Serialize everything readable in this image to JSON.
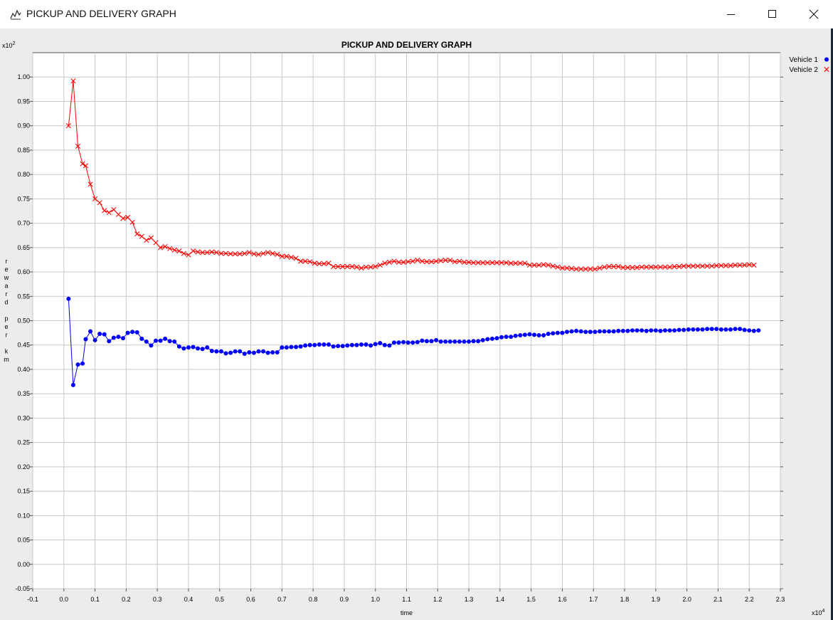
{
  "window": {
    "title": "PICKUP AND DELIVERY GRAPH",
    "icons": [
      "chart-app-icon",
      "minimize-icon",
      "maximize-icon",
      "close-icon"
    ]
  },
  "chart_data": {
    "type": "line",
    "title": "PICKUP AND DELIVERY GRAPH",
    "xlabel": "time",
    "ylabel": "reward per km",
    "x_multiplier": "x10",
    "x_multiplier_exp": "4",
    "y_multiplier": "x10",
    "y_multiplier_exp": "2",
    "xlim": [
      -0.1,
      2.3
    ],
    "ylim": [
      -0.05,
      1.05
    ],
    "x_ticks": [
      "-0.1",
      "0.0",
      "0.1",
      "0.2",
      "0.3",
      "0.4",
      "0.5",
      "0.6",
      "0.7",
      "0.8",
      "0.9",
      "1.0",
      "1.1",
      "1.2",
      "1.3",
      "1.4",
      "1.5",
      "1.6",
      "1.7",
      "1.8",
      "1.9",
      "2.0",
      "2.1",
      "2.2",
      "2.3"
    ],
    "y_ticks": [
      "-0.05",
      "0.00",
      "0.05",
      "0.10",
      "0.15",
      "0.20",
      "0.25",
      "0.30",
      "0.35",
      "0.40",
      "0.45",
      "0.50",
      "0.55",
      "0.60",
      "0.65",
      "0.70",
      "0.75",
      "0.80",
      "0.85",
      "0.90",
      "0.95",
      "1.00"
    ],
    "grid": true,
    "legend": "top-right",
    "series": [
      {
        "name": "Vehicle 1",
        "color": "#0000ff",
        "marker": "dot",
        "points": [
          [
            0.015,
            0.545
          ],
          [
            0.03,
            0.368
          ],
          [
            0.045,
            0.41
          ],
          [
            0.06,
            0.412
          ],
          [
            0.07,
            0.462
          ],
          [
            0.085,
            0.478
          ],
          [
            0.1,
            0.46
          ],
          [
            0.115,
            0.473
          ],
          [
            0.13,
            0.472
          ],
          [
            0.145,
            0.458
          ],
          [
            0.16,
            0.465
          ],
          [
            0.175,
            0.467
          ],
          [
            0.19,
            0.464
          ],
          [
            0.205,
            0.475
          ],
          [
            0.22,
            0.477
          ],
          [
            0.235,
            0.476
          ],
          [
            0.25,
            0.463
          ],
          [
            0.265,
            0.457
          ],
          [
            0.28,
            0.449
          ],
          [
            0.295,
            0.459
          ],
          [
            0.31,
            0.459
          ],
          [
            0.325,
            0.463
          ],
          [
            0.34,
            0.458
          ],
          [
            0.355,
            0.457
          ],
          [
            0.37,
            0.447
          ],
          [
            0.385,
            0.443
          ],
          [
            0.4,
            0.445
          ],
          [
            0.415,
            0.446
          ],
          [
            0.43,
            0.443
          ],
          [
            0.445,
            0.442
          ],
          [
            0.46,
            0.445
          ],
          [
            0.475,
            0.438
          ],
          [
            0.49,
            0.437
          ],
          [
            0.505,
            0.437
          ],
          [
            0.52,
            0.433
          ],
          [
            0.535,
            0.434
          ],
          [
            0.55,
            0.437
          ],
          [
            0.565,
            0.437
          ],
          [
            0.58,
            0.432
          ],
          [
            0.595,
            0.435
          ],
          [
            0.61,
            0.434
          ],
          [
            0.625,
            0.437
          ],
          [
            0.64,
            0.437
          ],
          [
            0.655,
            0.434
          ],
          [
            0.67,
            0.435
          ],
          [
            0.685,
            0.435
          ],
          [
            0.7,
            0.445
          ],
          [
            0.715,
            0.445
          ],
          [
            0.73,
            0.446
          ],
          [
            0.745,
            0.446
          ],
          [
            0.76,
            0.447
          ],
          [
            0.775,
            0.449
          ],
          [
            0.79,
            0.45
          ],
          [
            0.805,
            0.45
          ],
          [
            0.82,
            0.451
          ],
          [
            0.835,
            0.451
          ],
          [
            0.85,
            0.451
          ],
          [
            0.865,
            0.447
          ],
          [
            0.88,
            0.448
          ],
          [
            0.895,
            0.448
          ],
          [
            0.91,
            0.449
          ],
          [
            0.925,
            0.45
          ],
          [
            0.94,
            0.45
          ],
          [
            0.955,
            0.451
          ],
          [
            0.97,
            0.451
          ],
          [
            0.985,
            0.449
          ],
          [
            1.0,
            0.452
          ],
          [
            1.015,
            0.454
          ],
          [
            1.03,
            0.45
          ],
          [
            1.045,
            0.449
          ],
          [
            1.06,
            0.455
          ],
          [
            1.075,
            0.455
          ],
          [
            1.09,
            0.456
          ],
          [
            1.105,
            0.455
          ],
          [
            1.12,
            0.455
          ],
          [
            1.135,
            0.456
          ],
          [
            1.15,
            0.459
          ],
          [
            1.165,
            0.458
          ],
          [
            1.18,
            0.458
          ],
          [
            1.195,
            0.46
          ],
          [
            1.21,
            0.457
          ],
          [
            1.225,
            0.457
          ],
          [
            1.24,
            0.457
          ],
          [
            1.255,
            0.457
          ],
          [
            1.27,
            0.457
          ],
          [
            1.285,
            0.457
          ],
          [
            1.3,
            0.457
          ],
          [
            1.315,
            0.458
          ],
          [
            1.33,
            0.458
          ],
          [
            1.345,
            0.46
          ],
          [
            1.36,
            0.462
          ],
          [
            1.375,
            0.463
          ],
          [
            1.39,
            0.464
          ],
          [
            1.405,
            0.466
          ],
          [
            1.42,
            0.467
          ],
          [
            1.435,
            0.467
          ],
          [
            1.45,
            0.469
          ],
          [
            1.465,
            0.47
          ],
          [
            1.48,
            0.471
          ],
          [
            1.495,
            0.472
          ],
          [
            1.51,
            0.471
          ],
          [
            1.525,
            0.47
          ],
          [
            1.54,
            0.47
          ],
          [
            1.555,
            0.473
          ],
          [
            1.57,
            0.474
          ],
          [
            1.585,
            0.475
          ],
          [
            1.6,
            0.475
          ],
          [
            1.615,
            0.477
          ],
          [
            1.63,
            0.478
          ],
          [
            1.645,
            0.479
          ],
          [
            1.66,
            0.478
          ],
          [
            1.675,
            0.477
          ],
          [
            1.69,
            0.477
          ],
          [
            1.705,
            0.477
          ],
          [
            1.72,
            0.478
          ],
          [
            1.735,
            0.478
          ],
          [
            1.75,
            0.478
          ],
          [
            1.765,
            0.478
          ],
          [
            1.78,
            0.479
          ],
          [
            1.795,
            0.479
          ],
          [
            1.81,
            0.479
          ],
          [
            1.825,
            0.48
          ],
          [
            1.84,
            0.48
          ],
          [
            1.855,
            0.48
          ],
          [
            1.87,
            0.479
          ],
          [
            1.885,
            0.48
          ],
          [
            1.9,
            0.48
          ],
          [
            1.915,
            0.479
          ],
          [
            1.93,
            0.48
          ],
          [
            1.945,
            0.48
          ],
          [
            1.96,
            0.48
          ],
          [
            1.975,
            0.481
          ],
          [
            1.99,
            0.481
          ],
          [
            2.005,
            0.482
          ],
          [
            2.02,
            0.482
          ],
          [
            2.035,
            0.482
          ],
          [
            2.05,
            0.482
          ],
          [
            2.065,
            0.483
          ],
          [
            2.08,
            0.483
          ],
          [
            2.095,
            0.483
          ],
          [
            2.11,
            0.482
          ],
          [
            2.125,
            0.482
          ],
          [
            2.14,
            0.482
          ],
          [
            2.155,
            0.483
          ],
          [
            2.17,
            0.483
          ],
          [
            2.185,
            0.481
          ],
          [
            2.2,
            0.48
          ],
          [
            2.215,
            0.479
          ],
          [
            2.23,
            0.48
          ]
        ]
      },
      {
        "name": "Vehicle 2",
        "color": "#ff0000",
        "marker": "x",
        "points": [
          [
            0.015,
            0.9
          ],
          [
            0.03,
            0.992
          ],
          [
            0.045,
            0.858
          ],
          [
            0.06,
            0.822
          ],
          [
            0.07,
            0.818
          ],
          [
            0.085,
            0.78
          ],
          [
            0.1,
            0.75
          ],
          [
            0.115,
            0.742
          ],
          [
            0.13,
            0.726
          ],
          [
            0.145,
            0.722
          ],
          [
            0.16,
            0.728
          ],
          [
            0.175,
            0.718
          ],
          [
            0.19,
            0.71
          ],
          [
            0.205,
            0.712
          ],
          [
            0.22,
            0.702
          ],
          [
            0.235,
            0.678
          ],
          [
            0.25,
            0.673
          ],
          [
            0.265,
            0.665
          ],
          [
            0.28,
            0.67
          ],
          [
            0.295,
            0.66
          ],
          [
            0.31,
            0.65
          ],
          [
            0.325,
            0.652
          ],
          [
            0.34,
            0.648
          ],
          [
            0.355,
            0.645
          ],
          [
            0.37,
            0.643
          ],
          [
            0.385,
            0.638
          ],
          [
            0.4,
            0.635
          ],
          [
            0.415,
            0.643
          ],
          [
            0.43,
            0.641
          ],
          [
            0.445,
            0.64
          ],
          [
            0.46,
            0.64
          ],
          [
            0.475,
            0.641
          ],
          [
            0.49,
            0.64
          ],
          [
            0.505,
            0.638
          ],
          [
            0.52,
            0.638
          ],
          [
            0.535,
            0.637
          ],
          [
            0.55,
            0.637
          ],
          [
            0.565,
            0.637
          ],
          [
            0.58,
            0.638
          ],
          [
            0.595,
            0.64
          ],
          [
            0.61,
            0.637
          ],
          [
            0.625,
            0.636
          ],
          [
            0.64,
            0.638
          ],
          [
            0.655,
            0.64
          ],
          [
            0.67,
            0.638
          ],
          [
            0.685,
            0.636
          ],
          [
            0.7,
            0.632
          ],
          [
            0.715,
            0.632
          ],
          [
            0.73,
            0.63
          ],
          [
            0.745,
            0.628
          ],
          [
            0.76,
            0.622
          ],
          [
            0.775,
            0.622
          ],
          [
            0.79,
            0.621
          ],
          [
            0.805,
            0.618
          ],
          [
            0.82,
            0.617
          ],
          [
            0.835,
            0.617
          ],
          [
            0.85,
            0.618
          ],
          [
            0.865,
            0.611
          ],
          [
            0.88,
            0.611
          ],
          [
            0.895,
            0.611
          ],
          [
            0.91,
            0.611
          ],
          [
            0.925,
            0.611
          ],
          [
            0.94,
            0.61
          ],
          [
            0.955,
            0.608
          ],
          [
            0.97,
            0.61
          ],
          [
            0.985,
            0.61
          ],
          [
            1.0,
            0.611
          ],
          [
            1.015,
            0.614
          ],
          [
            1.03,
            0.618
          ],
          [
            1.045,
            0.62
          ],
          [
            1.06,
            0.622
          ],
          [
            1.075,
            0.62
          ],
          [
            1.09,
            0.62
          ],
          [
            1.105,
            0.621
          ],
          [
            1.12,
            0.622
          ],
          [
            1.135,
            0.624
          ],
          [
            1.15,
            0.622
          ],
          [
            1.165,
            0.621
          ],
          [
            1.18,
            0.621
          ],
          [
            1.195,
            0.622
          ],
          [
            1.21,
            0.623
          ],
          [
            1.225,
            0.624
          ],
          [
            1.24,
            0.624
          ],
          [
            1.255,
            0.621
          ],
          [
            1.27,
            0.622
          ],
          [
            1.285,
            0.62
          ],
          [
            1.3,
            0.62
          ],
          [
            1.315,
            0.619
          ],
          [
            1.33,
            0.619
          ],
          [
            1.345,
            0.619
          ],
          [
            1.36,
            0.619
          ],
          [
            1.375,
            0.619
          ],
          [
            1.39,
            0.619
          ],
          [
            1.405,
            0.619
          ],
          [
            1.42,
            0.619
          ],
          [
            1.435,
            0.618
          ],
          [
            1.45,
            0.618
          ],
          [
            1.465,
            0.618
          ],
          [
            1.48,
            0.618
          ],
          [
            1.495,
            0.614
          ],
          [
            1.51,
            0.614
          ],
          [
            1.525,
            0.614
          ],
          [
            1.54,
            0.615
          ],
          [
            1.555,
            0.614
          ],
          [
            1.57,
            0.612
          ],
          [
            1.585,
            0.61
          ],
          [
            1.6,
            0.608
          ],
          [
            1.615,
            0.608
          ],
          [
            1.63,
            0.607
          ],
          [
            1.645,
            0.606
          ],
          [
            1.66,
            0.606
          ],
          [
            1.675,
            0.606
          ],
          [
            1.69,
            0.606
          ],
          [
            1.705,
            0.606
          ],
          [
            1.72,
            0.608
          ],
          [
            1.735,
            0.61
          ],
          [
            1.75,
            0.611
          ],
          [
            1.765,
            0.611
          ],
          [
            1.78,
            0.611
          ],
          [
            1.795,
            0.609
          ],
          [
            1.81,
            0.609
          ],
          [
            1.825,
            0.609
          ],
          [
            1.84,
            0.609
          ],
          [
            1.855,
            0.61
          ],
          [
            1.87,
            0.61
          ],
          [
            1.885,
            0.61
          ],
          [
            1.9,
            0.61
          ],
          [
            1.915,
            0.61
          ],
          [
            1.93,
            0.61
          ],
          [
            1.945,
            0.61
          ],
          [
            1.96,
            0.611
          ],
          [
            1.975,
            0.611
          ],
          [
            1.99,
            0.612
          ],
          [
            2.005,
            0.612
          ],
          [
            2.02,
            0.612
          ],
          [
            2.035,
            0.612
          ],
          [
            2.05,
            0.612
          ],
          [
            2.065,
            0.612
          ],
          [
            2.08,
            0.612
          ],
          [
            2.095,
            0.613
          ],
          [
            2.11,
            0.613
          ],
          [
            2.125,
            0.613
          ],
          [
            2.14,
            0.613
          ],
          [
            2.155,
            0.614
          ],
          [
            2.17,
            0.614
          ],
          [
            2.185,
            0.614
          ],
          [
            2.2,
            0.615
          ],
          [
            2.215,
            0.614
          ]
        ]
      }
    ]
  }
}
